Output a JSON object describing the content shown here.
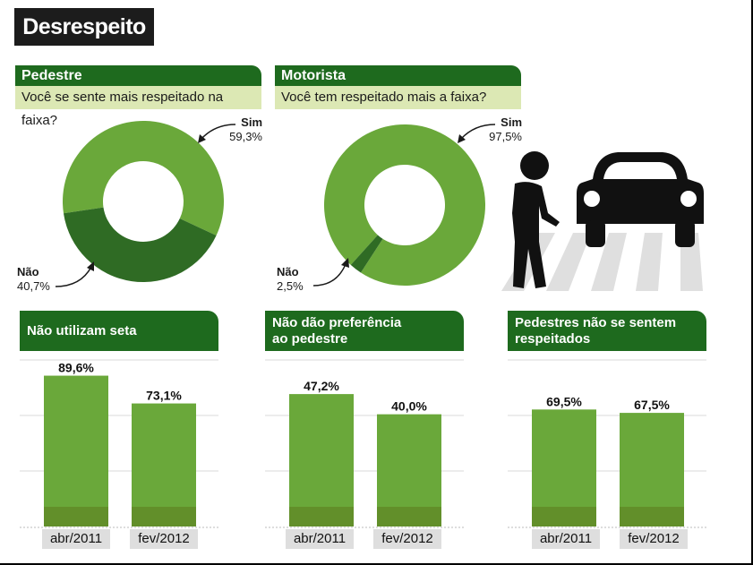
{
  "title": "Desrespeito",
  "colors": {
    "light_green": "#6aa83a",
    "dark_green": "#2f6b24",
    "header_green": "#1e6a1e",
    "sub_bg": "#dce8b4"
  },
  "donuts": [
    {
      "header": "Pedestre",
      "question": "Você se sente mais respeitado na faixa?",
      "yes_label": "Sim",
      "yes_value": "59,3%",
      "no_label": "Não",
      "no_value": "40,7%"
    },
    {
      "header": "Motorista",
      "question": "Você tem respeitado mais a faixa?",
      "yes_label": "Sim",
      "yes_value": "97,5%",
      "no_label": "Não",
      "no_value": "2,5%"
    }
  ],
  "bars": [
    {
      "header": "Não utilizam seta",
      "labels": [
        "89,6%",
        "73,1%"
      ]
    },
    {
      "header": "Não dão preferência\nao pedestre",
      "labels": [
        "47,2%",
        "40,0%"
      ]
    },
    {
      "header": "Pedestres não se sentem\nrespeitados",
      "labels": [
        "69,5%",
        "67,5%"
      ]
    }
  ],
  "categories": [
    "abr/2011",
    "fev/2012"
  ],
  "chart_data": [
    {
      "type": "pie",
      "title": "Pedestre",
      "categories": [
        "Sim",
        "Não"
      ],
      "values": [
        59.3,
        40.7
      ]
    },
    {
      "type": "pie",
      "title": "Motorista",
      "categories": [
        "Sim",
        "Não"
      ],
      "values": [
        97.5,
        2.5
      ]
    },
    {
      "type": "bar",
      "title": "Não utilizam seta",
      "categories": [
        "abr/2011",
        "fev/2012"
      ],
      "values": [
        89.6,
        73.1
      ],
      "ylim": [
        0,
        100
      ]
    },
    {
      "type": "bar",
      "title": "Não dão preferência ao pedestre",
      "categories": [
        "abr/2011",
        "fev/2012"
      ],
      "values": [
        47.2,
        40.0
      ],
      "ylim": [
        0,
        60
      ]
    },
    {
      "type": "bar",
      "title": "Pedestres não se sentem respeitados",
      "categories": [
        "abr/2011",
        "fev/2012"
      ],
      "values": [
        69.5,
        67.5
      ],
      "ylim": [
        0,
        100
      ]
    }
  ]
}
